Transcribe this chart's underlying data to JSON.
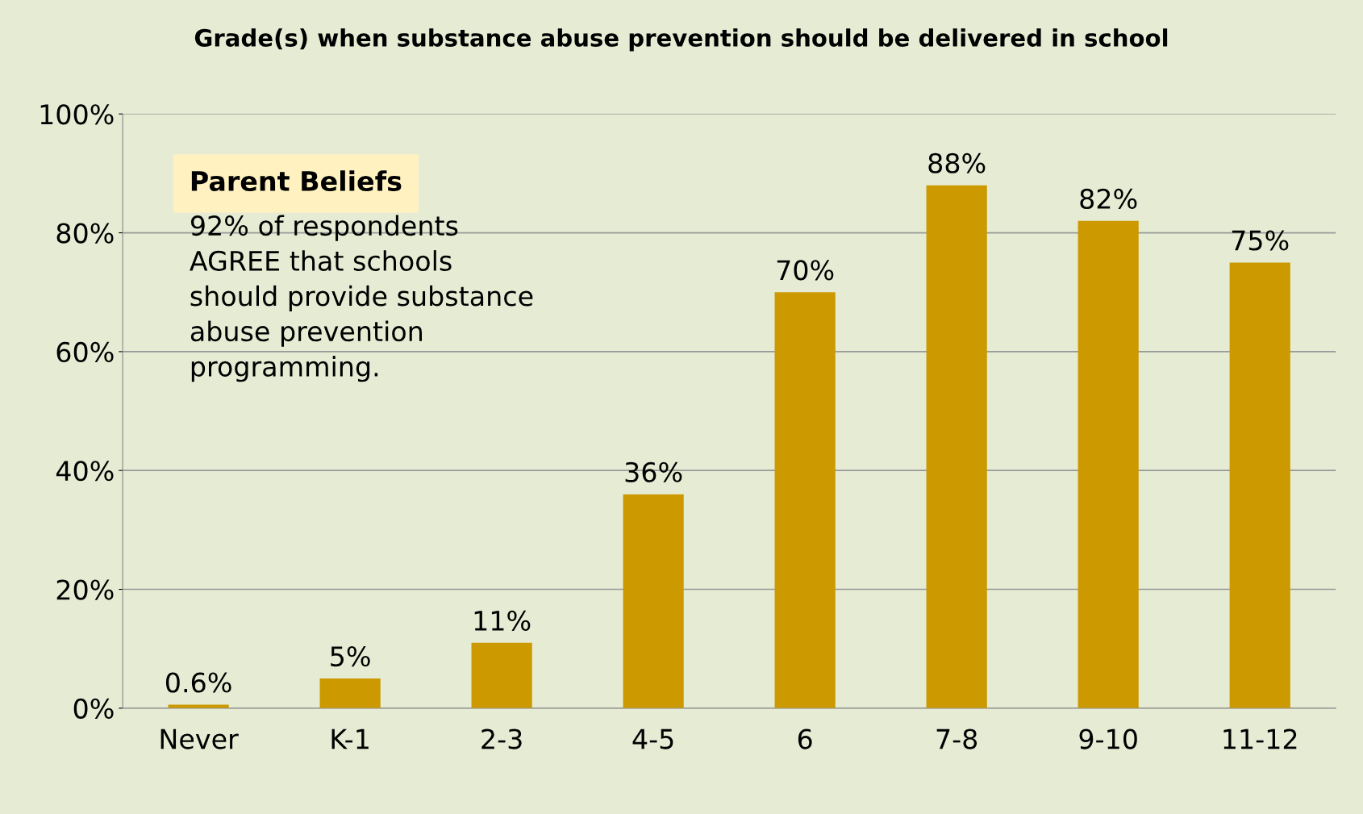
{
  "chart_data": {
    "type": "bar",
    "title": "Grade(s) when substance abuse prevention should be delivered in school",
    "categories": [
      "Never",
      "K-1",
      "2-3",
      "4-5",
      "6",
      "7-8",
      "9-10",
      "11-12"
    ],
    "values": [
      0.6,
      5,
      11,
      36,
      70,
      88,
      82,
      75
    ],
    "value_labels": [
      "0.6%",
      "5%",
      "11%",
      "36%",
      "70%",
      "88%",
      "82%",
      "75%"
    ],
    "color": "#cc9900",
    "ylim": [
      0,
      100
    ],
    "yticks": [
      {
        "value": 0,
        "label": "0%"
      },
      {
        "value": 20,
        "label": "20%"
      },
      {
        "value": 40,
        "label": "40%"
      },
      {
        "value": 60,
        "label": "60%"
      },
      {
        "value": 80,
        "label": "80%"
      },
      {
        "value": 100,
        "label": "100%"
      }
    ],
    "grid": "y",
    "annotations": [
      "Parent Beliefs",
      "92% of respondents\nAGREE that schools\nshould provide substance\nabuse prevention\nprogramming."
    ]
  }
}
